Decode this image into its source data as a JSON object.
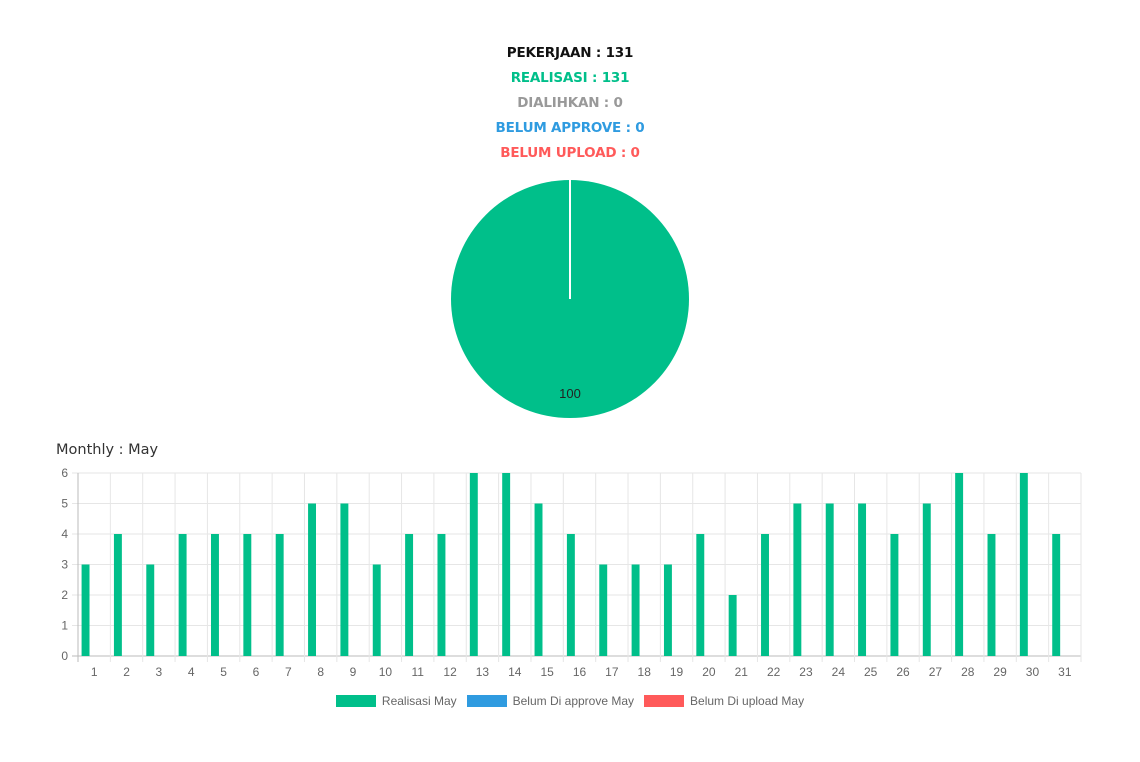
{
  "summary": {
    "pekerjaan": "PEKERJAAN : 131",
    "realisasi": "REALISASI : 131",
    "dialihkan": "DIALIHKAN : 0",
    "belum_approve": "BELUM APPROVE : 0",
    "belum_upload": "BELUM UPLOAD : 0"
  },
  "monthly_title": "Monthly : May",
  "colors": {
    "realisasi": "#00bf8a",
    "dialihkan": "#999999",
    "belum_approve": "#2f9be0",
    "belum_upload": "#ff5a5a",
    "pekerjaan": "#111111"
  },
  "chart_data": [
    {
      "type": "pie",
      "slices": [
        {
          "name": "Realisasi",
          "value": 100,
          "color": "#00bf8a"
        }
      ],
      "labels": [
        "100"
      ]
    },
    {
      "type": "bar",
      "categories": [
        "1",
        "2",
        "3",
        "4",
        "5",
        "6",
        "7",
        "8",
        "9",
        "10",
        "11",
        "12",
        "13",
        "14",
        "15",
        "16",
        "17",
        "18",
        "19",
        "20",
        "21",
        "22",
        "23",
        "24",
        "25",
        "26",
        "27",
        "28",
        "29",
        "30",
        "31"
      ],
      "series": [
        {
          "name": "Realisasi May",
          "color": "#00bf8a",
          "values": [
            3,
            4,
            3,
            4,
            4,
            4,
            4,
            5,
            5,
            3,
            4,
            4,
            6,
            6,
            5,
            4,
            3,
            3,
            3,
            4,
            2,
            4,
            5,
            5,
            5,
            4,
            5,
            6,
            4,
            6,
            4
          ]
        },
        {
          "name": "Belum Di approve May",
          "color": "#2f9be0",
          "values": [
            0,
            0,
            0,
            0,
            0,
            0,
            0,
            0,
            0,
            0,
            0,
            0,
            0,
            0,
            0,
            0,
            0,
            0,
            0,
            0,
            0,
            0,
            0,
            0,
            0,
            0,
            0,
            0,
            0,
            0,
            0
          ]
        },
        {
          "name": "Belum Di upload May",
          "color": "#ff5a5a",
          "values": [
            0,
            0,
            0,
            0,
            0,
            0,
            0,
            0,
            0,
            0,
            0,
            0,
            0,
            0,
            0,
            0,
            0,
            0,
            0,
            0,
            0,
            0,
            0,
            0,
            0,
            0,
            0,
            0,
            0,
            0,
            0
          ]
        }
      ],
      "yticks": [
        "0",
        "1",
        "2",
        "3",
        "4",
        "5",
        "6"
      ],
      "ylim": [
        0,
        6
      ],
      "grid": true,
      "legend": "bottom"
    }
  ]
}
